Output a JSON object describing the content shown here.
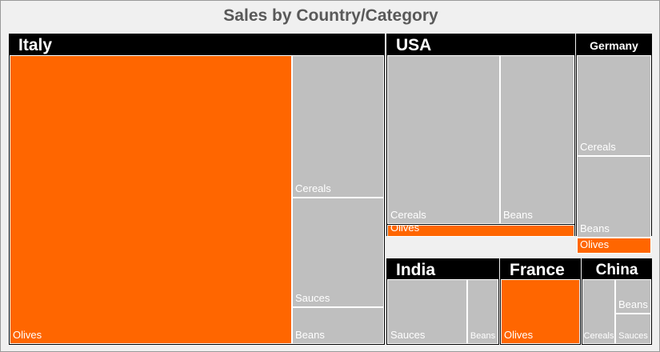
{
  "chart_data": {
    "type": "treemap",
    "title": "Sales by Country/Category",
    "colors": {
      "highlight": "#ff6600",
      "other": "#bfbfbf",
      "header_bg": "#000000",
      "header_text": "#ffffff"
    },
    "countries": [
      {
        "name": "Italy",
        "items": [
          {
            "category": "Olives",
            "value": 100,
            "highlight": true
          },
          {
            "category": "Cereals",
            "value": 15
          },
          {
            "category": "Sauces",
            "value": 12
          },
          {
            "category": "Beans",
            "value": 4
          }
        ]
      },
      {
        "name": "USA",
        "items": [
          {
            "category": "Cereals",
            "value": 28
          },
          {
            "category": "Beans",
            "value": 19
          },
          {
            "category": "Olives",
            "value": 7,
            "highlight": true
          }
        ]
      },
      {
        "name": "Germany",
        "items": [
          {
            "category": "Cereals",
            "value": 9
          },
          {
            "category": "Beans",
            "value": 7
          },
          {
            "category": "Olives",
            "value": 2,
            "highlight": true
          }
        ]
      },
      {
        "name": "India",
        "items": [
          {
            "category": "Sauces",
            "value": 9
          },
          {
            "category": "Beans",
            "value": 3
          }
        ]
      },
      {
        "name": "France",
        "items": [
          {
            "category": "Olives",
            "value": 9,
            "highlight": true
          }
        ]
      },
      {
        "name": "China",
        "items": [
          {
            "category": "Cereals",
            "value": 3
          },
          {
            "category": "Beans",
            "value": 2
          },
          {
            "category": "Sauces",
            "value": 2
          }
        ]
      }
    ]
  }
}
